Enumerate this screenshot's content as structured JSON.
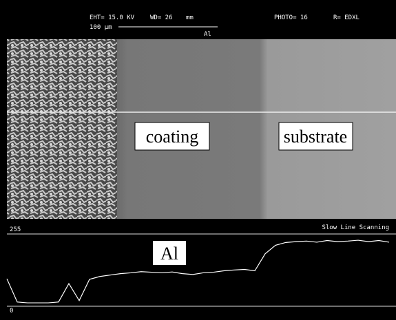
{
  "header": {
    "eht": "EHT= 15.0 KV",
    "wd": "WD= 26",
    "wd_unit": "mm",
    "scale": "100 µm",
    "element": "Al",
    "photo": "PHOTO= 16",
    "mode": "R= EDXL"
  },
  "image": {
    "labels": [
      "coating",
      "substrate"
    ]
  },
  "chart_data": {
    "type": "line",
    "subtitle": "Slow Line Scanning",
    "categories": [
      null,
      null,
      null,
      null,
      null,
      null,
      null,
      null,
      null,
      null,
      null,
      null,
      null,
      null,
      null,
      null,
      null,
      null,
      null,
      null,
      null,
      null,
      null,
      null,
      null,
      null,
      null,
      null,
      null,
      null,
      null,
      null,
      null,
      null,
      null,
      null,
      null,
      null
    ],
    "series": [
      {
        "name": "Al",
        "color": "#ffffff",
        "values": [
          97,
          15,
          12,
          12,
          12,
          15,
          80,
          20,
          95,
          105,
          110,
          115,
          118,
          122,
          120,
          118,
          121,
          115,
          112,
          118,
          120,
          125,
          128,
          130,
          125,
          185,
          215,
          225,
          228,
          230,
          226,
          232,
          228,
          230,
          233,
          228,
          232,
          226
        ]
      }
    ],
    "ylim": [
      0,
      255
    ],
    "yticks": [
      0,
      255
    ]
  }
}
